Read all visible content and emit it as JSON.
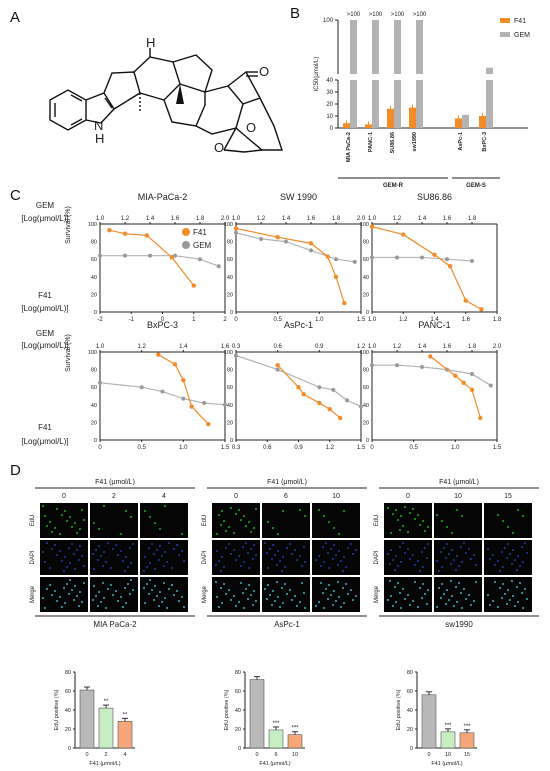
{
  "panels": {
    "A": "A",
    "B": "B",
    "C": "C",
    "D": "D"
  },
  "colors": {
    "f41": "#f28c28",
    "gem": "#b3b3b3",
    "ctrl_bar": "#b9b9b9",
    "f41_low": "#c7eec3",
    "f41_high": "#f5a77a",
    "edu": "#1fa31f",
    "dapi": "#1a3a9c"
  },
  "chart_data": [
    {
      "type": "bar",
      "panel": "B",
      "ylabel": "IC50(μmol/L)",
      "yticks": [
        0,
        10,
        20,
        30,
        40,
        100
      ],
      "categories": [
        "MIA PaCa-2",
        "PANC-1",
        "SU86.86",
        "sw1990",
        "AsPc-1",
        "BxPC-3"
      ],
      "series": [
        {
          "name": "F41",
          "values": [
            4,
            3,
            16,
            17,
            8,
            10
          ]
        },
        {
          "name": "GEM",
          "values": [
            100,
            100,
            100,
            100,
            11,
            47
          ]
        }
      ],
      "bar_labels": [
        ">100",
        ">100",
        ">100",
        ">100"
      ],
      "groups": [
        {
          "label": "GEM-R",
          "members": [
            "MIA PaCa-2",
            "PANC-1",
            "SU86.86",
            "sw1990"
          ]
        },
        {
          "label": "GEM-S",
          "members": [
            "AsPc-1",
            "BxPC-3"
          ]
        }
      ]
    },
    {
      "type": "scatter",
      "panel": "C",
      "title": "MIA-PaCa-2",
      "gem_axis_label": "GEM [Log(μmol/L)]",
      "f41_axis_label": "F41 [Log(μmol/L)]",
      "ylabel": "Survival (%)",
      "gem_xlim": [
        1.0,
        2.0
      ],
      "gem_ticks": [
        "1.0",
        "1.2",
        "1.4",
        "1.6",
        "1.8",
        "2.0"
      ],
      "f41_xlim": [
        -2,
        2
      ],
      "f41_ticks": [
        "-2",
        "-1",
        "0",
        "1",
        "2"
      ],
      "ylim": [
        0,
        100
      ],
      "yticks": [
        "0",
        "20",
        "40",
        "60",
        "80",
        "100"
      ],
      "legend": [
        "F41",
        "GEM"
      ],
      "series": [
        {
          "name": "F41",
          "x": [
            -1.7,
            -1.2,
            -0.5,
            0.3,
            1.0
          ],
          "y": [
            93,
            89,
            87,
            62,
            30
          ]
        },
        {
          "name": "GEM",
          "x": [
            1.0,
            1.2,
            1.4,
            1.6,
            1.8,
            1.95
          ],
          "y": [
            64,
            64,
            64,
            64,
            60,
            52
          ]
        }
      ]
    },
    {
      "type": "scatter",
      "panel": "C",
      "title": "SW 1990",
      "gem_xlim": [
        1.0,
        2.0
      ],
      "gem_ticks": [
        "1.0",
        "1.2",
        "1.4",
        "1.6",
        "1.8",
        "2.0"
      ],
      "f41_xlim": [
        0,
        1.5
      ],
      "f41_ticks": [
        "0",
        "0.5",
        "1.0",
        "1.5"
      ],
      "ylim": [
        0,
        100
      ],
      "series": [
        {
          "name": "F41",
          "x": [
            0.0,
            0.5,
            0.9,
            1.1,
            1.2,
            1.3
          ],
          "y": [
            95,
            85,
            78,
            63,
            40,
            10
          ]
        },
        {
          "name": "GEM",
          "x": [
            1.0,
            1.2,
            1.4,
            1.6,
            1.8,
            1.95
          ],
          "y": [
            90,
            83,
            80,
            70,
            60,
            57
          ]
        }
      ]
    },
    {
      "type": "scatter",
      "panel": "C",
      "title": "SU86.86",
      "gem_xlim": [
        1.0,
        2.0
      ],
      "gem_ticks": [
        "1.0",
        "1.2",
        "1.4",
        "1.6",
        "1.8"
      ],
      "f41_xlim": [
        1.0,
        1.8
      ],
      "f41_ticks": [
        "1.0",
        "1.2",
        "1.4",
        "1.6",
        "1.8"
      ],
      "ylim": [
        0,
        100
      ],
      "series": [
        {
          "name": "F41",
          "x": [
            1.0,
            1.2,
            1.4,
            1.5,
            1.6,
            1.7
          ],
          "y": [
            97,
            88,
            65,
            52,
            13,
            3
          ]
        },
        {
          "name": "GEM",
          "x": [
            1.0,
            1.2,
            1.4,
            1.6,
            1.8
          ],
          "y": [
            62,
            62,
            62,
            60,
            58
          ]
        }
      ]
    },
    {
      "type": "scatter",
      "panel": "C",
      "title": "BxPC-3",
      "gem_xlim": [
        1.0,
        1.6
      ],
      "gem_ticks": [
        "1.0",
        "1.2",
        "1.4",
        "1.6"
      ],
      "f41_xlim": [
        0,
        1.5
      ],
      "f41_ticks": [
        "0",
        "0.5",
        "1.0",
        "1.5"
      ],
      "ylim": [
        0,
        100
      ],
      "series": [
        {
          "name": "F41",
          "x": [
            0.7,
            0.9,
            1.0,
            1.1,
            1.3
          ],
          "y": [
            97,
            86,
            68,
            38,
            18
          ]
        },
        {
          "name": "GEM",
          "x": [
            1.0,
            1.2,
            1.3,
            1.4,
            1.5,
            1.6
          ],
          "y": [
            65,
            60,
            55,
            47,
            42,
            40
          ]
        }
      ]
    },
    {
      "type": "scatter",
      "panel": "C",
      "title": "AsPc-1",
      "gem_xlim": [
        0.3,
        1.2
      ],
      "gem_ticks": [
        "0.3",
        "0.6",
        "0.9",
        "1.2"
      ],
      "f41_xlim": [
        0.3,
        1.5
      ],
      "f41_ticks": [
        "0.3",
        "0.6",
        "0.9",
        "1.2",
        "1.5"
      ],
      "ylim": [
        0,
        100
      ],
      "series": [
        {
          "name": "F41",
          "x": [
            0.7,
            0.9,
            0.95,
            1.1,
            1.2,
            1.3
          ],
          "y": [
            85,
            60,
            52,
            42,
            35,
            25
          ]
        },
        {
          "name": "GEM",
          "x": [
            0.3,
            0.6,
            0.9,
            1.0,
            1.1,
            1.2
          ],
          "y": [
            96,
            80,
            60,
            57,
            45,
            38
          ]
        }
      ]
    },
    {
      "type": "scatter",
      "panel": "C",
      "title": "PANC-1",
      "gem_xlim": [
        1.0,
        2.0
      ],
      "gem_ticks": [
        "1.0",
        "1.2",
        "1.4",
        "1.6",
        "1.8",
        "2.0"
      ],
      "f41_xlim": [
        0,
        1.5
      ],
      "f41_ticks": [
        "0",
        "0.5",
        "1.0",
        "1.5"
      ],
      "ylim": [
        0,
        100
      ],
      "series": [
        {
          "name": "F41",
          "x": [
            0.7,
            1.0,
            1.1,
            1.2,
            1.3
          ],
          "y": [
            95,
            73,
            65,
            57,
            25
          ]
        },
        {
          "name": "GEM",
          "x": [
            1.0,
            1.2,
            1.4,
            1.6,
            1.8,
            1.95
          ],
          "y": [
            85,
            85,
            83,
            80,
            75,
            62
          ]
        }
      ]
    },
    {
      "type": "bar",
      "panel": "D",
      "title": "MIA PaCa-2",
      "ylabel": "EdU positive (%)",
      "xlabel": "F41 (μmol/L)",
      "ylim": [
        0,
        80
      ],
      "yticks": [
        "0",
        "20",
        "40",
        "60",
        "80"
      ],
      "categories": [
        "0",
        "2",
        "4"
      ],
      "values": [
        61,
        42,
        28
      ],
      "significance": [
        "",
        "**",
        "**"
      ]
    },
    {
      "type": "bar",
      "panel": "D",
      "title": "AsPc-1",
      "ylabel": "EdU positive (%)",
      "xlabel": "F41 (μmol/L)",
      "ylim": [
        0,
        80
      ],
      "yticks": [
        "0",
        "20",
        "40",
        "60",
        "80"
      ],
      "categories": [
        "0",
        "6",
        "10"
      ],
      "values": [
        72,
        19,
        14
      ],
      "significance": [
        "",
        "***",
        "***"
      ]
    },
    {
      "type": "bar",
      "panel": "D",
      "title": "sw1990",
      "ylabel": "EdU positive (%)",
      "xlabel": "F41 (μmol/L)",
      "ylim": [
        0,
        80
      ],
      "yticks": [
        "0",
        "20",
        "40",
        "60",
        "80"
      ],
      "categories": [
        "0",
        "10",
        "15"
      ],
      "values": [
        56,
        17,
        16
      ],
      "significance": [
        "",
        "***",
        "***"
      ]
    }
  ],
  "panel_d_images": [
    {
      "header": "F41 (μmol/L)",
      "doses": [
        "0",
        "2",
        "4"
      ],
      "rows": [
        "EdU",
        "DAPI",
        "Merge"
      ],
      "cell_line": "MIA PaCa-2"
    },
    {
      "header": "F41 (μmol/L)",
      "doses": [
        "0",
        "6",
        "10"
      ],
      "rows": [
        "EdU",
        "DAPI",
        "Merge"
      ],
      "cell_line": "AsPc-1"
    },
    {
      "header": "F41 (μmol/L)",
      "doses": [
        "0",
        "10",
        "15"
      ],
      "rows": [
        "EdU",
        "DAPI",
        "Merge"
      ],
      "cell_line": "sw1990"
    }
  ],
  "panel_a_labels": {
    "h": "H",
    "nh": "N\nH",
    "o1": "O",
    "o2": "O",
    "o3": "O"
  }
}
